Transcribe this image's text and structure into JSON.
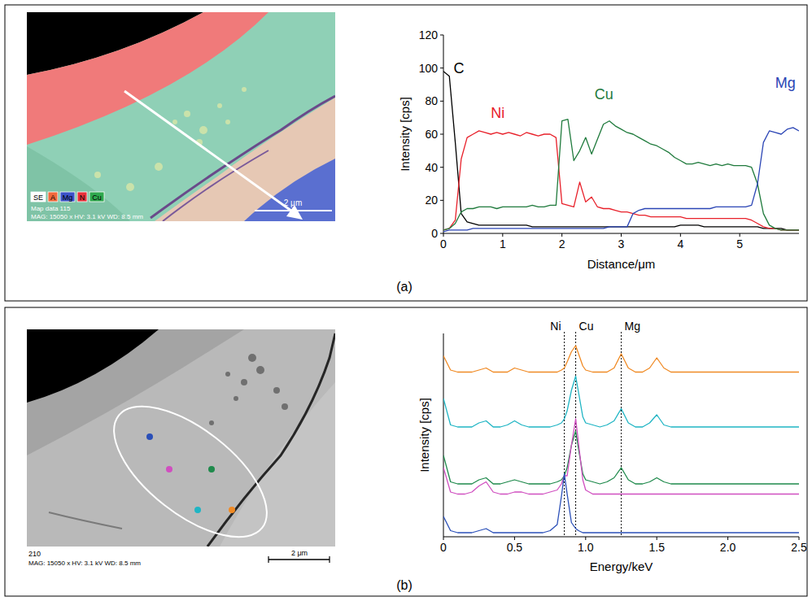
{
  "chart_data": [
    {
      "type": "line",
      "x_label": "Distance/μm",
      "y_label": "Intensity [cps]",
      "x": [
        0,
        0.1,
        0.2,
        0.3,
        0.4,
        0.5,
        0.6,
        0.7,
        0.8,
        0.9,
        1,
        1.1,
        1.2,
        1.3,
        1.4,
        1.5,
        1.6,
        1.7,
        1.8,
        1.9,
        2,
        2.1,
        2.2,
        2.3,
        2.4,
        2.5,
        2.6,
        2.7,
        2.8,
        2.9,
        3,
        3.1,
        3.2,
        3.3,
        3.4,
        3.5,
        3.6,
        3.7,
        3.8,
        3.9,
        4,
        4.1,
        4.2,
        4.3,
        4.4,
        4.5,
        4.6,
        4.7,
        4.8,
        4.9,
        5,
        5.1,
        5.2,
        5.3,
        5.4,
        5.5,
        5.6,
        5.7,
        5.8,
        5.9,
        6
      ],
      "xlim": [
        0,
        6
      ],
      "xticks": [
        0,
        1,
        2,
        3,
        4,
        5
      ],
      "ylim": [
        0,
        120
      ],
      "yticks": [
        0,
        20,
        40,
        60,
        80,
        100,
        120
      ],
      "series": [
        {
          "name": "C",
          "color": "#000000",
          "values": [
            98,
            95,
            55,
            12,
            7,
            6,
            5,
            5,
            5,
            5,
            5,
            5,
            5,
            5,
            5,
            4,
            4,
            4,
            4,
            4,
            4,
            4,
            4,
            4,
            4,
            4,
            4,
            4,
            4,
            4,
            4,
            4,
            4,
            4,
            4,
            4,
            4,
            4,
            4,
            4,
            5,
            5,
            5,
            5,
            4,
            4,
            4,
            4,
            4,
            4,
            4,
            4,
            4,
            4,
            3,
            3,
            3,
            3,
            2,
            2,
            2
          ]
        },
        {
          "name": "Ni",
          "color": "#e8202a",
          "values": [
            2,
            3,
            8,
            45,
            58,
            60,
            62,
            61,
            60,
            61,
            60,
            61,
            60,
            59,
            61,
            60,
            59,
            60,
            60,
            58,
            18,
            17,
            16,
            31,
            19,
            22,
            16,
            15,
            15,
            14,
            13,
            13,
            12,
            11,
            11,
            10,
            10,
            10,
            10,
            10,
            10,
            9,
            9,
            9,
            9,
            9,
            9,
            9,
            9,
            9,
            9,
            9,
            8,
            6,
            4,
            3,
            3,
            2,
            2,
            2,
            2
          ]
        },
        {
          "name": "Cu",
          "color": "#1f7a3c",
          "values": [
            2,
            3,
            6,
            13,
            15,
            15,
            16,
            16,
            16,
            15,
            16,
            16,
            16,
            16,
            16,
            17,
            16,
            16,
            17,
            17,
            68,
            69,
            44,
            50,
            58,
            48,
            57,
            66,
            68,
            65,
            63,
            61,
            60,
            58,
            56,
            54,
            53,
            51,
            49,
            46,
            44,
            42,
            42,
            43,
            42,
            41,
            42,
            41,
            42,
            41,
            41,
            41,
            40,
            30,
            12,
            5,
            3,
            2,
            2,
            2,
            2
          ]
        },
        {
          "name": "Mg",
          "color": "#2b45b5",
          "values": [
            1,
            2,
            2,
            2,
            2,
            3,
            3,
            3,
            3,
            3,
            3,
            3,
            3,
            3,
            3,
            3,
            3,
            3,
            3,
            3,
            3,
            3,
            3,
            3,
            3,
            3,
            3,
            3,
            4,
            4,
            4,
            4,
            12,
            14,
            15,
            15,
            15,
            15,
            15,
            15,
            15,
            15,
            15,
            15,
            15,
            15,
            16,
            16,
            16,
            16,
            16,
            16,
            17,
            30,
            55,
            62,
            61,
            60,
            63,
            64,
            62
          ]
        }
      ]
    },
    {
      "type": "line",
      "x_label": "Energy/keV",
      "y_label": "Intensity [cps]",
      "tick_labels": "x",
      "x": [
        0,
        0.05,
        0.1,
        0.15,
        0.2,
        0.25,
        0.3,
        0.35,
        0.4,
        0.45,
        0.5,
        0.55,
        0.6,
        0.65,
        0.7,
        0.75,
        0.8,
        0.83,
        0.85,
        0.87,
        0.9,
        0.93,
        0.95,
        0.98,
        1.0,
        1.05,
        1.1,
        1.15,
        1.2,
        1.25,
        1.3,
        1.35,
        1.4,
        1.45,
        1.5,
        1.55,
        1.6,
        1.65,
        1.7,
        1.75,
        1.8,
        1.85,
        1.9,
        1.95,
        2.0,
        2.05,
        2.1,
        2.15,
        2.2,
        2.25,
        2.3,
        2.35,
        2.4,
        2.45,
        2.5
      ],
      "xlim": [
        0,
        2.5
      ],
      "xticks": [
        0,
        0.5,
        {
          "value": 1,
          "label": "1.0"
        },
        1.5,
        {
          "value": 2,
          "label": "2.0"
        },
        2.5
      ],
      "ylim": [
        0,
        100
      ],
      "annotations": [
        {
          "x": 0.85,
          "label": "Ni"
        },
        {
          "x": 0.93,
          "label": "Cu"
        },
        {
          "x": 1.25,
          "label": "Mg"
        }
      ],
      "series": [
        {
          "color": "#f08a24",
          "values": [
            89,
            82,
            81,
            81,
            81,
            82,
            83,
            81,
            81,
            81,
            83,
            82,
            81,
            81,
            81,
            81,
            81,
            82,
            83,
            86,
            91,
            94,
            90,
            84,
            82,
            81,
            81,
            81,
            83,
            90,
            83,
            81,
            81,
            83,
            88,
            83,
            81,
            81,
            81,
            81,
            81,
            81,
            81,
            81,
            81,
            81,
            81,
            81,
            81,
            81,
            81,
            81,
            81,
            81,
            81
          ]
        },
        {
          "color": "#1fb5c4",
          "values": [
            68,
            55,
            54,
            54,
            54,
            56,
            57,
            54,
            54,
            55,
            57,
            55,
            54,
            54,
            54,
            54,
            55,
            56,
            58,
            62,
            72,
            79,
            71,
            59,
            56,
            55,
            54,
            55,
            57,
            63,
            56,
            54,
            54,
            56,
            60,
            55,
            54,
            54,
            54,
            54,
            54,
            54,
            54,
            54,
            54,
            54,
            54,
            54,
            54,
            54,
            54,
            54,
            54,
            54,
            54
          ]
        },
        {
          "color": "#1f8a4c",
          "values": [
            40,
            27,
            26,
            26,
            26,
            28,
            29,
            26,
            26,
            27,
            28,
            27,
            26,
            26,
            26,
            26,
            27,
            28,
            30,
            34,
            45,
            52,
            43,
            31,
            28,
            27,
            26,
            27,
            29,
            34,
            28,
            26,
            26,
            27,
            29,
            27,
            26,
            26,
            26,
            26,
            26,
            26,
            26,
            26,
            26,
            26,
            26,
            26,
            26,
            26,
            26,
            26,
            26,
            26,
            26
          ]
        },
        {
          "color": "#d04fc0",
          "values": [
            34,
            22,
            21,
            21,
            22,
            25,
            27,
            22,
            21,
            21,
            22,
            22,
            21,
            21,
            21,
            22,
            23,
            26,
            30,
            30,
            45,
            58,
            46,
            28,
            23,
            21,
            21,
            21,
            21,
            21,
            21,
            21,
            21,
            21,
            21,
            21,
            21,
            21,
            21,
            21,
            21,
            21,
            21,
            21,
            21,
            21,
            21,
            21,
            21,
            21,
            21,
            21,
            21,
            21,
            21
          ]
        },
        {
          "color": "#2a4fb8",
          "values": [
            10,
            3,
            2,
            2,
            2,
            3,
            4,
            2,
            2,
            2,
            2,
            2,
            2,
            2,
            2,
            3,
            6,
            20,
            31,
            21,
            7,
            4,
            3,
            2,
            2,
            2,
            2,
            2,
            2,
            2,
            2,
            2,
            2,
            2,
            2,
            2,
            2,
            2,
            2,
            2,
            2,
            2,
            2,
            2,
            2,
            2,
            2,
            2,
            2,
            2,
            2,
            2,
            2,
            2,
            2
          ]
        }
      ]
    }
  ],
  "panels": [
    {
      "label": "(a)",
      "image": {
        "map_legend": [
          {
            "label": "SE",
            "color": "#ffffff"
          },
          {
            "label": "A",
            "color": "#f26a3c"
          },
          {
            "label": "Mg",
            "color": "#3c52c8"
          },
          {
            "label": "N",
            "color": "#e8303a"
          },
          {
            "label": "Cu",
            "color": "#2ea84e"
          }
        ],
        "caption": "Map data 115",
        "info": "MAG: 15050 x HV: 3.1 kV WD: 8.5 mm",
        "scale_bar": "2 μm"
      }
    },
    {
      "label": "(b)",
      "image": {
        "caption": "210",
        "info": "MAG: 15050 x HV: 3.1 kV WD: 8.5 mm",
        "scale_bar": "2 μm"
      }
    }
  ]
}
